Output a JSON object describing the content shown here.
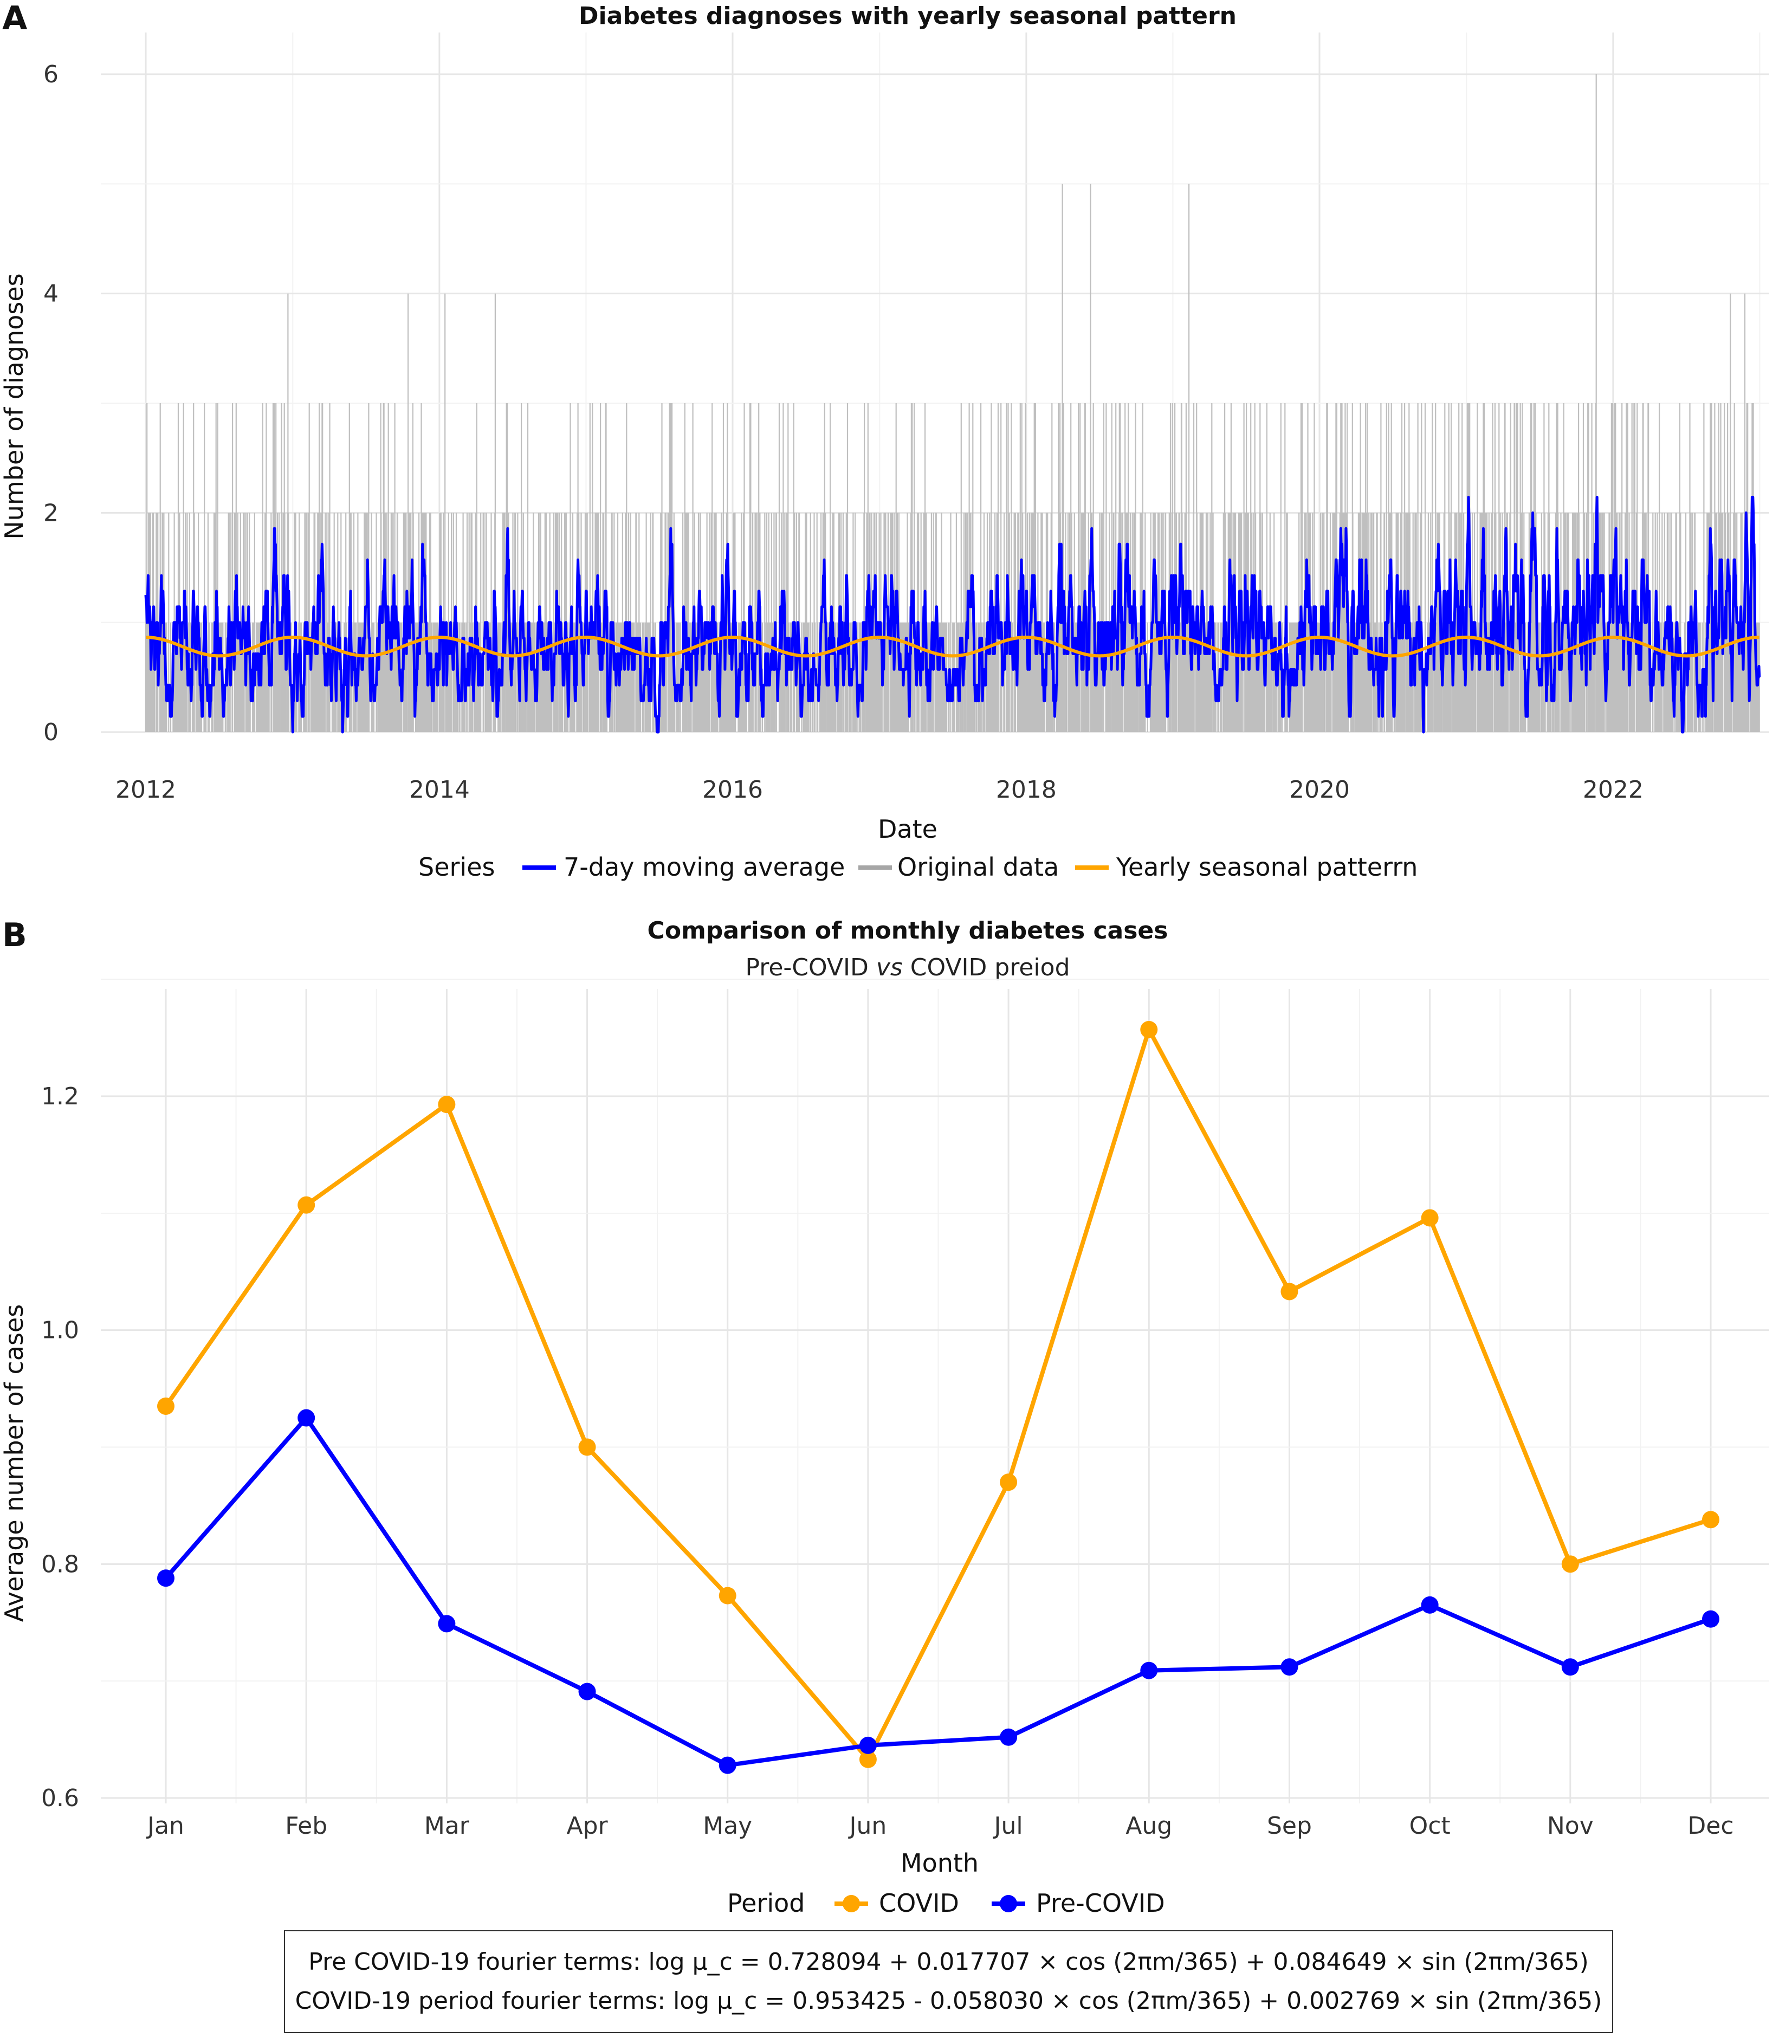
{
  "panelA": {
    "letter": "A",
    "chart_data": {
      "type": "line",
      "title": "Diabetes diagnoses with yearly seasonal pattern",
      "xlabel": "Date",
      "ylabel": "Number of diagnoses",
      "x_ticks": [
        "2012",
        "2014",
        "2016",
        "2018",
        "2020",
        "2022"
      ],
      "y_ticks": [
        "0",
        "2",
        "4",
        "6"
      ],
      "xlim": [
        "2012-01-01",
        "2022-12-31"
      ],
      "ylim": [
        0,
        6.2
      ],
      "legend_title": "Series",
      "legend_position": "bottom",
      "series": [
        {
          "name": "7-day moving average",
          "color": "#0000ff",
          "description_range": [
            0,
            2.15
          ]
        },
        {
          "name": "Original data",
          "color": "#a6a6a6"
        },
        {
          "name": "Yearly seasonal patterrn",
          "color": "#ffa500"
        }
      ],
      "original_data_spikes": [
        {
          "date": "2012-12-20",
          "value": 4
        },
        {
          "date": "2013-10-15",
          "value": 4
        },
        {
          "date": "2014-01-15",
          "value": 4
        },
        {
          "date": "2014-05-20",
          "value": 4
        },
        {
          "date": "2018-04-01",
          "value": 5
        },
        {
          "date": "2018-06-10",
          "value": 5
        },
        {
          "date": "2019-02-10",
          "value": 5
        },
        {
          "date": "2021-11-20",
          "value": 6
        },
        {
          "date": "2022-10-20",
          "value": 4
        },
        {
          "date": "2022-11-25",
          "value": 4
        }
      ],
      "seasonal_pattern": {
        "mean": 0.78,
        "amplitude": 0.085,
        "peak_month": "Jan"
      }
    }
  },
  "panelB": {
    "letter": "B",
    "chart_data": {
      "type": "line",
      "title": "Comparison of monthly diabetes cases",
      "subtitle_pre": "Pre-COVID ",
      "subtitle_italic": "vs",
      "subtitle_post": " COVID preiod",
      "xlabel": "Month",
      "ylabel": "Average number of cases",
      "categories": [
        "Jan",
        "Feb",
        "Mar",
        "Apr",
        "May",
        "Jun",
        "Jul",
        "Aug",
        "Sep",
        "Oct",
        "Nov",
        "Dec"
      ],
      "y_ticks": [
        "0.6",
        "0.8",
        "1.0",
        "1.2"
      ],
      "ylim": [
        0.6,
        1.28
      ],
      "legend_title": "Period",
      "legend_position": "bottom",
      "series": [
        {
          "name": "COVID",
          "color": "#ffa500",
          "values": [
            0.935,
            1.107,
            1.193,
            0.9,
            0.773,
            0.633,
            0.87,
            1.257,
            1.033,
            1.096,
            0.8,
            0.838
          ]
        },
        {
          "name": "Pre-COVID",
          "color": "#0000ff",
          "values": [
            0.788,
            0.925,
            0.749,
            0.691,
            0.628,
            0.645,
            0.652,
            0.709,
            0.712,
            0.765,
            0.712,
            0.753
          ]
        }
      ]
    }
  },
  "note": {
    "line1": "Pre COVID-19 fourier terms: log μ_c = 0.728094 + 0.017707 × cos (2πm/365) + 0.084649 × sin (2πm/365)",
    "line2": "COVID-19 period fourier terms: log μ_c = 0.953425 - 0.058030 × cos (2πm/365) + 0.002769 × sin (2πm/365)"
  }
}
